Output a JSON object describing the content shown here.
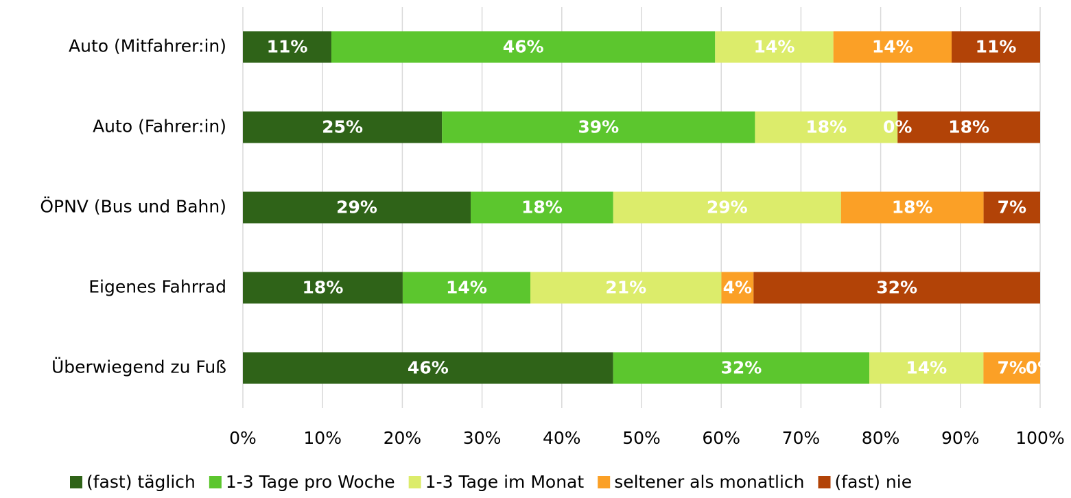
{
  "chart_data": {
    "type": "bar",
    "orientation": "horizontal",
    "stacked": "percent",
    "categories": [
      "Auto (Mitfahrer:in)",
      "Auto (Fahrer:in)",
      "ÖPNV (Bus und Bahn)",
      "Eigenes Fahrrad",
      "Überwiegend zu Fuß"
    ],
    "series": [
      {
        "name": "(fast) täglich",
        "color": "#2f6318",
        "values": [
          10.7,
          25.0,
          28.6,
          17.9,
          46.4
        ],
        "value_labels": [
          "11%",
          "25%",
          "29%",
          "18%",
          "46%"
        ]
      },
      {
        "name": "1-3 Tage pro Woche",
        "color": "#5cc62e",
        "values": [
          46.4,
          39.3,
          17.9,
          14.3,
          32.1
        ],
        "value_labels": [
          "46%",
          "39%",
          "18%",
          "14%",
          "32%"
        ]
      },
      {
        "name": "1-3 Tage im Monat",
        "color": "#dcec6b",
        "values": [
          14.3,
          17.9,
          28.6,
          21.4,
          14.3
        ],
        "value_labels": [
          "14%",
          "18%",
          "29%",
          "21%",
          "14%"
        ]
      },
      {
        "name": "seltener als monatlich",
        "color": "#fba026",
        "values": [
          14.3,
          0,
          17.9,
          3.6,
          7.1
        ],
        "value_labels": [
          "14%",
          "0%",
          "18%",
          "4%",
          "7%"
        ]
      },
      {
        "name": "(fast) nie",
        "color": "#b24307",
        "values": [
          10.7,
          17.9,
          7.1,
          32.1,
          0
        ],
        "value_labels": [
          "11%",
          "18%",
          "7%",
          "32%",
          "0%"
        ]
      }
    ],
    "xlim": [
      0,
      100
    ],
    "xticks": [
      {
        "value": 0,
        "label": "0%"
      },
      {
        "value": 10,
        "label": "10%"
      },
      {
        "value": 20,
        "label": "20%"
      },
      {
        "value": 30,
        "label": "30%"
      },
      {
        "value": 40,
        "label": "40%"
      },
      {
        "value": 50,
        "label": "50%"
      },
      {
        "value": 60,
        "label": "60%"
      },
      {
        "value": 70,
        "label": "70%"
      },
      {
        "value": 80,
        "label": "80%"
      },
      {
        "value": 90,
        "label": "90%"
      },
      {
        "value": 100,
        "label": "100%"
      }
    ],
    "grid": true,
    "legend": "bottom"
  }
}
